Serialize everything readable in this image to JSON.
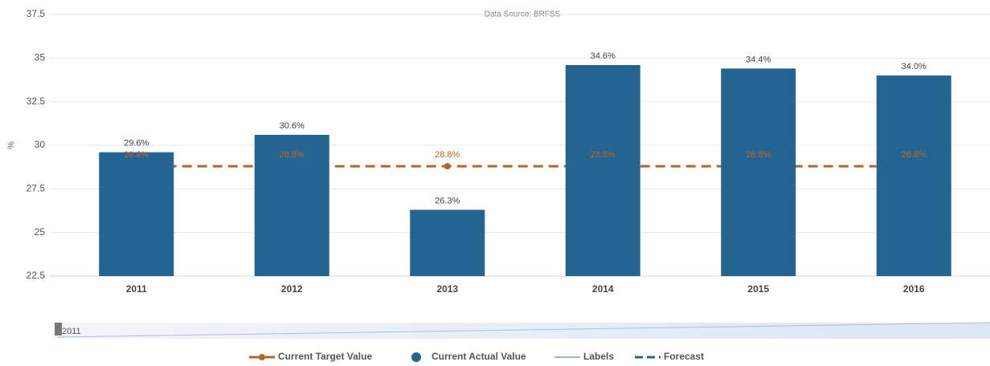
{
  "chart_data": {
    "type": "bar",
    "subtitle": "Data Source: BRFSS",
    "y_label": "%",
    "categories": [
      "2011",
      "2012",
      "2013",
      "2014",
      "2015",
      "2016"
    ],
    "series": [
      {
        "name": "Current Actual Value",
        "type": "bar",
        "color": "#236590",
        "values": [
          29.6,
          30.6,
          26.3,
          34.6,
          34.4,
          34.0
        ],
        "value_labels": [
          "29.6%",
          "30.6%",
          "26.3%",
          "34.6%",
          "34.4%",
          "34.0%"
        ]
      },
      {
        "name": "Current Target Value",
        "type": "line",
        "color": "#b5652a",
        "values": [
          28.8,
          28.8,
          28.8,
          28.8,
          28.8,
          28.8
        ],
        "value_labels": [
          "28.8%",
          "28.8%",
          "28.8%",
          "28.8%",
          "28.8%",
          "28.8%"
        ]
      }
    ],
    "legend_extra": [
      {
        "name": "Labels",
        "color": "#9db4c8"
      },
      {
        "name": "Forecast",
        "color": "#236590"
      }
    ],
    "navigator_label": "2011",
    "ylim": [
      22.5,
      37.5
    ],
    "yticks": [
      22.5,
      25,
      27.5,
      30,
      32.5,
      35,
      37.5
    ],
    "grid": true
  }
}
